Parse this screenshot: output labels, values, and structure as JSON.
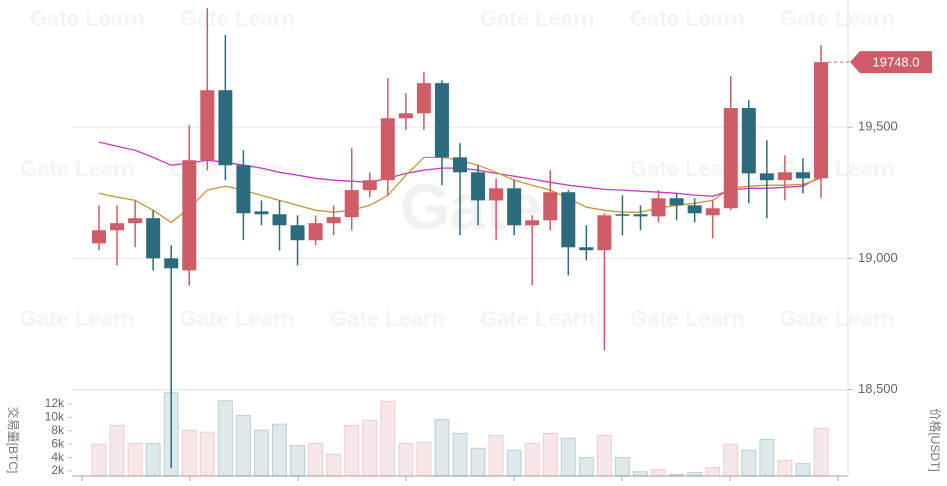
{
  "chart_data": {
    "type": "candlestick",
    "watermark": "Gate Learn",
    "logo": "Gate",
    "open": [
      19057,
      19107,
      19134,
      19153,
      19000,
      18954,
      19374,
      19641,
      19355,
      19179,
      19168,
      19126,
      19069,
      19134,
      19157,
      19260,
      19298,
      19534,
      19553,
      19668,
      19385,
      19328,
      19221,
      19267,
      19126,
      19145,
      19252,
      19042,
      19031,
      19168,
      19168,
      19160,
      19229,
      19202,
      19164,
      19191,
      19573,
      19324,
      19298,
      19328,
      19305
    ],
    "high": [
      19202,
      19202,
      19221,
      19183,
      19050,
      19508,
      19954,
      19851,
      19412,
      19221,
      19221,
      19164,
      19164,
      19202,
      19420,
      19328,
      19687,
      19630,
      19710,
      19679,
      19439,
      19355,
      19305,
      19298,
      19164,
      19336,
      19260,
      19126,
      19172,
      19240,
      19202,
      19260,
      19248,
      19229,
      19221,
      19695,
      19603,
      19450,
      19393,
      19382,
      19813
    ],
    "low": [
      19031,
      18973,
      19042,
      18954,
      18200,
      18897,
      19336,
      19298,
      19069,
      19126,
      19030,
      18973,
      19050,
      19088,
      19107,
      19233,
      19240,
      19489,
      19489,
      19279,
      19088,
      19126,
      19069,
      19088,
      18897,
      19107,
      18935,
      18992,
      18649,
      19088,
      19107,
      19137,
      19145,
      19137,
      19076,
      19183,
      19210,
      19153,
      19221,
      19248,
      19229
    ],
    "close": [
      19107,
      19134,
      19153,
      19000,
      18962,
      19374,
      19641,
      19355,
      19172,
      19168,
      19126,
      19069,
      19134,
      19157,
      19260,
      19298,
      19534,
      19553,
      19668,
      19385,
      19328,
      19221,
      19267,
      19126,
      19145,
      19252,
      19042,
      19031,
      19164,
      19164,
      19160,
      19229,
      19202,
      19172,
      19191,
      19573,
      19324,
      19298,
      19328,
      19305,
      19748
    ],
    "up_color": "#cf5d68",
    "down_color": "#2b6b7b",
    "ma": [
      {
        "color": "#c83cbf",
        "values": [
          19443,
          19427,
          19412,
          19385,
          19355,
          19363,
          19374,
          19366,
          19355,
          19344,
          19328,
          19317,
          19305,
          19298,
          19294,
          19290,
          19305,
          19324,
          19336,
          19344,
          19344,
          19336,
          19324,
          19313,
          19302,
          19290,
          19279,
          19271,
          19263,
          19260,
          19256,
          19252,
          19248,
          19241,
          19237,
          19260,
          19267,
          19267,
          19271,
          19275,
          19313
        ]
      },
      {
        "color": "#c8963c",
        "values": [
          19248,
          19233,
          19221,
          19183,
          19137,
          19191,
          19260,
          19275,
          19260,
          19240,
          19221,
          19202,
          19183,
          19176,
          19183,
          19202,
          19240,
          19317,
          19385,
          19385,
          19374,
          19355,
          19328,
          19298,
          19279,
          19260,
          19229,
          19195,
          19183,
          19176,
          19176,
          19191,
          19202,
          19210,
          19221,
          19267,
          19275,
          19279,
          19279,
          19282,
          19305
        ]
      }
    ],
    "ylim": [
      18170,
      19985
    ],
    "yticks": [
      {
        "value": 18500,
        "label": "18,500"
      },
      {
        "value": 19000,
        "label": "19,000"
      },
      {
        "value": 19500,
        "label": "19,500"
      }
    ],
    "ylabel": "价格[USDT]",
    "last_price": {
      "value": 19748,
      "label": "19748.0"
    },
    "volume": {
      "label": "交易量[BTC]",
      "values": [
        6000,
        8800,
        6100,
        6100,
        13700,
        8100,
        7800,
        12500,
        10300,
        8100,
        9000,
        5800,
        6100,
        4500,
        8800,
        9600,
        12400,
        6100,
        6300,
        9700,
        7600,
        5400,
        7300,
        5100,
        6100,
        7600,
        6900,
        4000,
        7300,
        4000,
        1900,
        2200,
        1500,
        1800,
        2500,
        6000,
        5100,
        6700,
        3600,
        3100,
        8400
      ],
      "ylim": [
        1250,
        14390
      ],
      "yticks": [
        {
          "value": 2000,
          "label": "2k"
        },
        {
          "value": 4000,
          "label": "4k"
        },
        {
          "value": 6000,
          "label": "6k"
        },
        {
          "value": 8000,
          "label": "8k"
        },
        {
          "value": 10000,
          "label": "10k"
        },
        {
          "value": 12000,
          "label": "12k"
        }
      ]
    },
    "grid": true
  }
}
